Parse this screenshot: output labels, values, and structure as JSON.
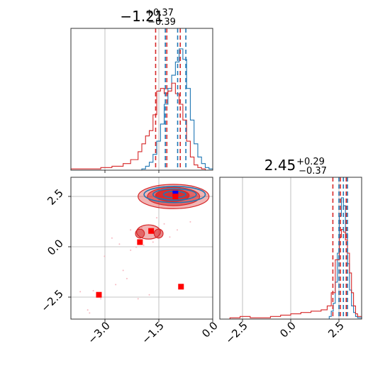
{
  "colors": {
    "red": "#d62728",
    "blue": "#1f77b4",
    "red_marker": "#ff0000",
    "blue_marker": "#0000ff",
    "grid": "#b0b0b0"
  },
  "chart_data": [
    {
      "panel": "marginal-param-1",
      "type": "histogram",
      "title": {
        "main": "−1.21",
        "sup": "+0.37",
        "sub": "−0.39"
      },
      "xlim": [
        -3.8,
        0.0
      ],
      "grid": true,
      "series": [
        {
          "name": "",
          "color": "#1f77b4",
          "x": [
            -2.0,
            -1.9,
            -1.8,
            -1.7,
            -1.6,
            -1.5,
            -1.4,
            -1.3,
            -1.2,
            -1.1,
            -1.0,
            -0.9,
            -0.8,
            -0.7,
            -0.6,
            -0.5,
            -0.4,
            -0.3,
            -0.2,
            -0.1,
            0.0
          ],
          "density": [
            0.0,
            0.01,
            0.03,
            0.06,
            0.12,
            0.22,
            0.35,
            0.5,
            0.62,
            0.72,
            0.82,
            0.92,
            0.84,
            0.62,
            0.38,
            0.2,
            0.1,
            0.05,
            0.02,
            0.01,
            0.0
          ],
          "quantile_lines": [
            -1.27,
            -0.94,
            -0.72
          ]
        },
        {
          "name": "",
          "color": "#d62728",
          "x": [
            -3.8,
            -3.4,
            -3.0,
            -2.7,
            -2.4,
            -2.2,
            -2.0,
            -1.9,
            -1.8,
            -1.7,
            -1.6,
            -1.5,
            -1.4,
            -1.3,
            -1.2,
            -1.1,
            -1.0,
            -0.9,
            -0.8,
            -0.7,
            -0.6,
            -0.5,
            -0.4,
            -0.3,
            -0.2,
            -0.1,
            0.0
          ],
          "density": [
            0.01,
            0.01,
            0.02,
            0.03,
            0.05,
            0.08,
            0.14,
            0.2,
            0.26,
            0.3,
            0.42,
            0.6,
            0.62,
            0.58,
            0.6,
            0.66,
            0.58,
            0.5,
            0.38,
            0.22,
            0.1,
            0.04,
            0.02,
            0.01,
            0.0,
            0.0,
            0.0
          ],
          "quantile_lines": [
            -1.53,
            -1.23,
            -0.87
          ]
        }
      ]
    },
    {
      "panel": "joint-2d",
      "type": "scatter",
      "xlim": [
        -3.8,
        0.0
      ],
      "ylim": [
        -3.5,
        3.5
      ],
      "xticks": [
        "−3.0",
        "−1.5",
        "0.0"
      ],
      "xtick_values": [
        -3.0,
        -1.5,
        0.0
      ],
      "yticks": [
        "−2.5",
        "0.0",
        "2.5"
      ],
      "ytick_values": [
        -2.5,
        0.0,
        2.5
      ],
      "grid": true,
      "contours": [
        {
          "series": "red",
          "level": "outer",
          "center": [
            -1.05,
            2.55
          ],
          "radius": [
            0.95,
            0.6
          ]
        },
        {
          "series": "red",
          "level": "outer",
          "center": [
            -1.72,
            0.8
          ],
          "radius": [
            0.32,
            0.35
          ]
        },
        {
          "series": "red",
          "level": "mid",
          "center": [
            -1.05,
            2.55
          ],
          "radius": [
            0.7,
            0.45
          ]
        },
        {
          "series": "red",
          "level": "mid",
          "center": [
            -1.95,
            0.72
          ],
          "radius": [
            0.12,
            0.22
          ]
        },
        {
          "series": "red",
          "level": "mid",
          "center": [
            -1.45,
            0.72
          ],
          "radius": [
            0.12,
            0.22
          ]
        },
        {
          "series": "red",
          "level": "inner",
          "center": [
            -1.08,
            2.6
          ],
          "radius": [
            0.45,
            0.3
          ]
        },
        {
          "series": "blue",
          "level": "outer",
          "center": [
            -1.02,
            2.65
          ],
          "radius": [
            0.82,
            0.4
          ]
        },
        {
          "series": "blue",
          "level": "mid",
          "center": [
            -1.02,
            2.65
          ],
          "radius": [
            0.58,
            0.28
          ]
        },
        {
          "series": "blue",
          "level": "inner",
          "center": [
            -1.02,
            2.65
          ],
          "radius": [
            0.3,
            0.16
          ]
        }
      ],
      "samples_red": [
        [
          -3.2,
          -2.1
        ],
        [
          -3.35,
          -3.05
        ],
        [
          -3.0,
          -2.5
        ],
        [
          -2.6,
          -1.8
        ],
        [
          -2.3,
          -1.5
        ],
        [
          -2.5,
          0.2
        ],
        [
          -2.2,
          -0.1
        ],
        [
          -2.05,
          0.05
        ],
        [
          -1.85,
          0.15
        ],
        [
          -1.6,
          0.3
        ],
        [
          -2.7,
          0.5
        ],
        [
          -1.5,
          1.5
        ],
        [
          -0.95,
          0.9
        ],
        [
          -2.0,
          -2.5
        ],
        [
          -1.7,
          -2.3
        ],
        [
          -3.55,
          -2.15
        ],
        [
          -0.6,
          1.3
        ],
        [
          -1.3,
          1.2
        ],
        [
          -2.9,
          -0.4
        ],
        [
          -2.4,
          -1.1
        ],
        [
          -0.8,
          -2.0
        ],
        [
          -1.9,
          1.0
        ],
        [
          -1.15,
          0.55
        ],
        [
          -3.3,
          -3.2
        ],
        [
          -2.2,
          0.9
        ]
      ],
      "markers": [
        {
          "color": "#0000ff",
          "x": -1.0,
          "y": 2.7
        },
        {
          "color": "#ff0000",
          "x": -1.0,
          "y": 2.55
        },
        {
          "color": "#ff0000",
          "x": -1.65,
          "y": 0.85
        },
        {
          "color": "#ff0000",
          "x": -1.95,
          "y": 0.3
        },
        {
          "color": "#ff0000",
          "x": -0.85,
          "y": -1.9
        },
        {
          "color": "#ff0000",
          "x": -3.05,
          "y": -2.3
        }
      ]
    },
    {
      "panel": "marginal-param-2",
      "type": "histogram",
      "title": {
        "main": "2.45",
        "sup": "+0.29",
        "sub": "−0.37"
      },
      "xlim": [
        -3.5,
        3.5
      ],
      "xticks": [
        "−2.5",
        "0.0",
        "2.5"
      ],
      "xtick_values": [
        -2.5,
        0.0,
        2.5
      ],
      "grid": true,
      "series": [
        {
          "name": "",
          "color": "#1f77b4",
          "x": [
            1.8,
            1.9,
            2.0,
            2.1,
            2.2,
            2.3,
            2.4,
            2.5,
            2.6,
            2.7,
            2.8,
            2.9,
            3.0,
            3.1,
            3.2,
            3.3,
            3.4,
            3.5
          ],
          "density": [
            0.0,
            0.02,
            0.06,
            0.12,
            0.28,
            0.5,
            0.78,
            0.92,
            0.86,
            0.65,
            0.42,
            0.22,
            0.1,
            0.05,
            0.02,
            0.01,
            0.01,
            0.0
          ],
          "quantile_lines": [
            2.38,
            2.6,
            2.8
          ]
        },
        {
          "name": "",
          "color": "#d62728",
          "x": [
            -3.5,
            -3.0,
            -2.5,
            -2.0,
            -1.5,
            -1.0,
            -0.5,
            0.0,
            0.5,
            1.0,
            1.5,
            1.8,
            2.0,
            2.2,
            2.4,
            2.5,
            2.6,
            2.7,
            2.8,
            2.9,
            3.0,
            3.1,
            3.2,
            3.3,
            3.5
          ],
          "density": [
            0.0,
            0.01,
            0.02,
            0.01,
            0.01,
            0.02,
            0.03,
            0.04,
            0.05,
            0.06,
            0.07,
            0.1,
            0.2,
            0.45,
            0.62,
            0.68,
            0.66,
            0.6,
            0.5,
            0.35,
            0.2,
            0.1,
            0.04,
            0.02,
            0.0
          ],
          "quantile_lines": [
            2.08,
            2.45,
            2.74
          ]
        }
      ]
    }
  ]
}
